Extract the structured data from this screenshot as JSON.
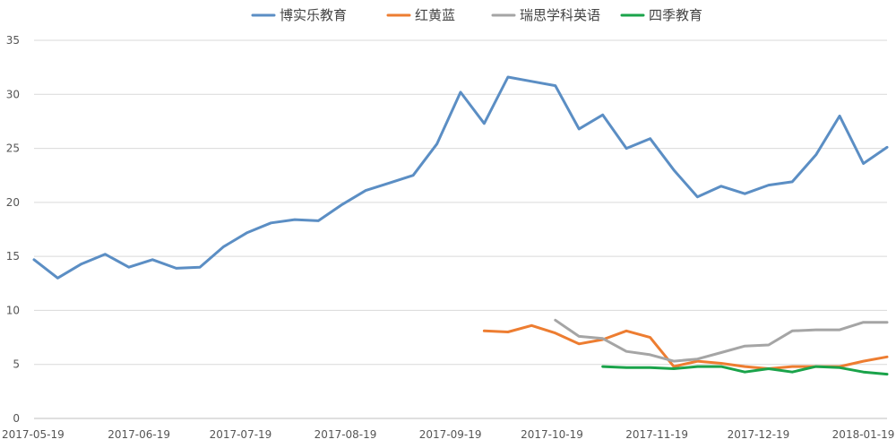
{
  "chart_data": {
    "type": "line",
    "title": "",
    "xlabel": "",
    "ylabel": "",
    "ylim": [
      0,
      35
    ],
    "y_ticks": [
      0,
      5,
      10,
      15,
      20,
      25,
      30,
      35
    ],
    "grid": true,
    "legend_position": "top",
    "x_axis": "dates",
    "x_range": [
      "2017-05-19",
      "2018-01-26"
    ],
    "x_tick_labels": [
      "2017-05-19",
      "2017-06-19",
      "2017-07-19",
      "2017-08-19",
      "2017-09-19",
      "2017-10-19",
      "2017-11-19",
      "2017-12-19",
      "2018-01-19"
    ],
    "series": [
      {
        "name": "博实乐教育",
        "color": "#5b8ec4",
        "points": [
          [
            "2017-05-19",
            14.7
          ],
          [
            "2017-05-26",
            13.0
          ],
          [
            "2017-06-02",
            14.3
          ],
          [
            "2017-06-09",
            15.2
          ],
          [
            "2017-06-16",
            14.0
          ],
          [
            "2017-06-23",
            14.7
          ],
          [
            "2017-06-30",
            13.9
          ],
          [
            "2017-07-07",
            14.0
          ],
          [
            "2017-07-14",
            15.9
          ],
          [
            "2017-07-21",
            17.2
          ],
          [
            "2017-07-28",
            18.1
          ],
          [
            "2017-08-04",
            18.4
          ],
          [
            "2017-08-11",
            18.3
          ],
          [
            "2017-08-18",
            19.8
          ],
          [
            "2017-08-25",
            21.1
          ],
          [
            "2017-09-01",
            21.8
          ],
          [
            "2017-09-08",
            22.5
          ],
          [
            "2017-09-15",
            25.4
          ],
          [
            "2017-09-22",
            30.2
          ],
          [
            "2017-09-29",
            27.3
          ],
          [
            "2017-10-06",
            31.6
          ],
          [
            "2017-10-13",
            31.2
          ],
          [
            "2017-10-20",
            30.8
          ],
          [
            "2017-10-27",
            26.8
          ],
          [
            "2017-11-03",
            28.1
          ],
          [
            "2017-11-10",
            25.0
          ],
          [
            "2017-11-17",
            25.9
          ],
          [
            "2017-11-24",
            23.0
          ],
          [
            "2017-12-01",
            20.5
          ],
          [
            "2017-12-08",
            21.5
          ],
          [
            "2017-12-15",
            20.8
          ],
          [
            "2017-12-22",
            21.6
          ],
          [
            "2017-12-29",
            21.9
          ],
          [
            "2018-01-05",
            24.4
          ],
          [
            "2018-01-12",
            28.0
          ],
          [
            "2018-01-19",
            23.6
          ],
          [
            "2018-01-26",
            25.1
          ]
        ]
      },
      {
        "name": "红黄蓝",
        "color": "#ed7d31",
        "points": [
          [
            "2017-09-29",
            8.1
          ],
          [
            "2017-10-06",
            8.0
          ],
          [
            "2017-10-13",
            8.6
          ],
          [
            "2017-10-20",
            7.9
          ],
          [
            "2017-10-27",
            6.9
          ],
          [
            "2017-11-03",
            7.3
          ],
          [
            "2017-11-10",
            8.1
          ],
          [
            "2017-11-17",
            7.5
          ],
          [
            "2017-11-24",
            4.8
          ],
          [
            "2017-12-01",
            5.3
          ],
          [
            "2017-12-08",
            5.1
          ],
          [
            "2017-12-15",
            4.8
          ],
          [
            "2017-12-22",
            4.6
          ],
          [
            "2017-12-29",
            4.8
          ],
          [
            "2018-01-05",
            4.8
          ],
          [
            "2018-01-12",
            4.8
          ],
          [
            "2018-01-19",
            5.3
          ],
          [
            "2018-01-26",
            5.7
          ]
        ]
      },
      {
        "name": "瑞思学科英语",
        "color": "#a5a5a5",
        "points": [
          [
            "2017-10-20",
            9.1
          ],
          [
            "2017-10-27",
            7.6
          ],
          [
            "2017-11-03",
            7.4
          ],
          [
            "2017-11-10",
            6.2
          ],
          [
            "2017-11-17",
            5.9
          ],
          [
            "2017-11-24",
            5.3
          ],
          [
            "2017-12-01",
            5.5
          ],
          [
            "2017-12-08",
            6.1
          ],
          [
            "2017-12-15",
            6.7
          ],
          [
            "2017-12-22",
            6.8
          ],
          [
            "2017-12-29",
            8.1
          ],
          [
            "2018-01-05",
            8.2
          ],
          [
            "2018-01-12",
            8.2
          ],
          [
            "2018-01-19",
            8.9
          ],
          [
            "2018-01-26",
            8.9
          ]
        ]
      },
      {
        "name": "四季教育",
        "color": "#1aa34a",
        "points": [
          [
            "2017-11-03",
            4.8
          ],
          [
            "2017-11-10",
            4.7
          ],
          [
            "2017-11-17",
            4.7
          ],
          [
            "2017-11-24",
            4.6
          ],
          [
            "2017-12-01",
            4.8
          ],
          [
            "2017-12-08",
            4.8
          ],
          [
            "2017-12-15",
            4.3
          ],
          [
            "2017-12-22",
            4.6
          ],
          [
            "2017-12-29",
            4.3
          ],
          [
            "2018-01-05",
            4.8
          ],
          [
            "2018-01-12",
            4.7
          ],
          [
            "2018-01-19",
            4.3
          ],
          [
            "2018-01-26",
            4.1
          ]
        ]
      }
    ]
  }
}
